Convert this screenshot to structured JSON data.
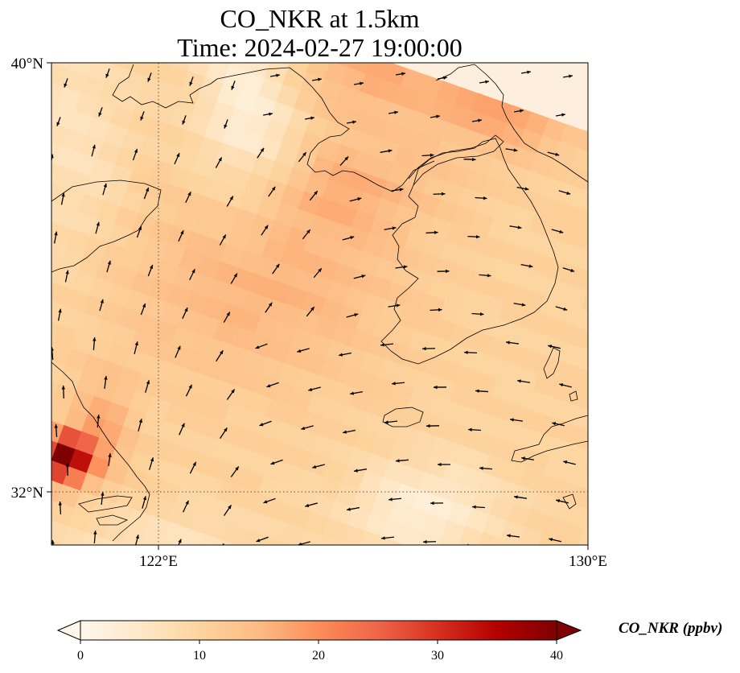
{
  "title": {
    "line1": "CO_NKR at 1.5km",
    "line2": "Time: 2024-02-27 19:00:00"
  },
  "map": {
    "projection": "lat-lon",
    "lon_range": [
      118.7,
      130.0
    ],
    "lat_range": [
      30.9,
      40.0
    ],
    "lon_ticks": [
      {
        "value": 122,
        "label": "122°E"
      },
      {
        "value": 130,
        "label": "130°E"
      }
    ],
    "lat_ticks": [
      {
        "value": 40,
        "label": "40°N"
      },
      {
        "value": 32,
        "label": "32°N"
      }
    ],
    "gridlines": "dotted",
    "coastline_color": "#000000",
    "wind_vectors": "black arrows"
  },
  "colorbar": {
    "colormap": "OrRd",
    "min": 0,
    "max": 40,
    "extend": "both",
    "ticks": [
      0,
      10,
      20,
      30,
      40
    ],
    "label": "CO_NKR (ppbv)"
  },
  "colors": {
    "stops": [
      "#fff7ec",
      "#fee8c8",
      "#fdd49e",
      "#fdbb84",
      "#fc8d59",
      "#ef6548",
      "#d7301f",
      "#b30000",
      "#7f0000"
    ]
  }
}
